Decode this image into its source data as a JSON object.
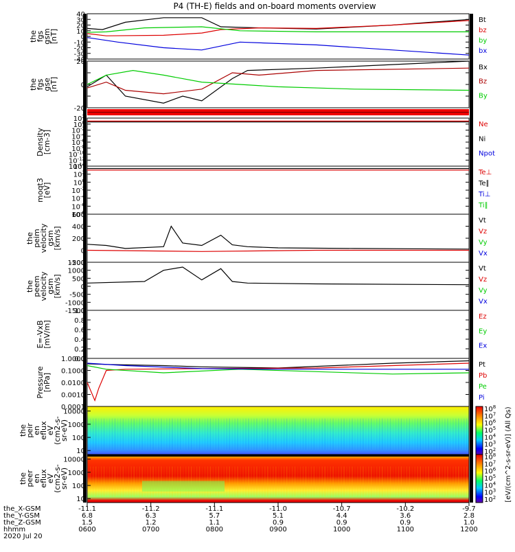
{
  "title": "P4 (TH-E) fields and on-board moments overview",
  "chart_data": [
    {
      "type": "line",
      "ylabel": [
        "the",
        "fgs",
        "gsm",
        "[nT]"
      ],
      "ylim": [
        -40,
        40
      ],
      "yticks": [
        "40",
        "30",
        "20",
        "10",
        "0",
        "-10",
        "-20",
        "-30",
        "-40"
      ],
      "legend": [
        {
          "name": "Bt",
          "color": "#000000"
        },
        {
          "name": "bz",
          "color": "#dd0000"
        },
        {
          "name": "by",
          "color": "#00cc00"
        },
        {
          "name": "bx",
          "color": "#0000dd"
        }
      ],
      "series": [
        {
          "name": "Bt",
          "color": "#000000",
          "x": [
            0,
            0.04,
            0.1,
            0.2,
            0.3,
            0.35,
            0.45,
            0.6,
            0.8,
            1.0
          ],
          "y": [
            14,
            12,
            25,
            33,
            33,
            17,
            15,
            13,
            20,
            30
          ]
        },
        {
          "name": "bz",
          "color": "#dd0000",
          "x": [
            0,
            0.05,
            0.2,
            0.3,
            0.35,
            0.45,
            0.6,
            0.8,
            1.0
          ],
          "y": [
            5,
            1,
            2,
            6,
            12,
            15,
            14,
            20,
            28
          ]
        },
        {
          "name": "by",
          "color": "#00cc00",
          "x": [
            0,
            0.05,
            0.15,
            0.3,
            0.4,
            0.6,
            1.0
          ],
          "y": [
            7,
            8,
            15,
            17,
            10,
            8,
            8
          ]
        },
        {
          "name": "bx",
          "color": "#0000dd",
          "x": [
            0,
            0.08,
            0.2,
            0.3,
            0.4,
            0.6,
            1.0
          ],
          "y": [
            -2,
            -10,
            -20,
            -24,
            -10,
            -15,
            -33
          ]
        }
      ]
    },
    {
      "type": "line",
      "ylabel": [
        "the",
        "fgs",
        "gse",
        "[nT]"
      ],
      "ylim": [
        -20,
        20
      ],
      "yticks": [
        "20",
        "",
        "0",
        "",
        "-20"
      ],
      "legend": [
        {
          "name": "Bx",
          "color": "#000000"
        },
        {
          "name": "Bz",
          "color": "#aa0000"
        },
        {
          "name": "By",
          "color": "#00cc00"
        }
      ],
      "series": [
        {
          "name": "Bx",
          "color": "#000000",
          "x": [
            0,
            0.05,
            0.1,
            0.2,
            0.25,
            0.3,
            0.38,
            0.42,
            0.6,
            1.0
          ],
          "y": [
            -2,
            8,
            -10,
            -16,
            -10,
            -14,
            5,
            12,
            14,
            20
          ]
        },
        {
          "name": "Bz",
          "color": "#aa0000",
          "x": [
            0,
            0.05,
            0.1,
            0.2,
            0.3,
            0.38,
            0.45,
            0.6,
            1.0
          ],
          "y": [
            -3,
            2,
            -5,
            -8,
            -4,
            10,
            8,
            12,
            14
          ]
        },
        {
          "name": "By",
          "color": "#00cc00",
          "x": [
            0,
            0.05,
            0.12,
            0.2,
            0.3,
            0.4,
            0.5,
            0.7,
            1.0
          ],
          "y": [
            0,
            8,
            12,
            8,
            2,
            0,
            -2,
            -4,
            -5
          ]
        }
      ]
    },
    {
      "type": "line",
      "ylabel": [
        "Density",
        "[cm-3]"
      ],
      "ylim": [
        -14,
        2
      ],
      "yscale": "log",
      "yticks": [
        "10^2",
        "10^0",
        "10^-2",
        "10^-4",
        "10^-6",
        "10^-8",
        "10^-10",
        "10^-12",
        "10^-14"
      ],
      "legend": [
        {
          "name": "Ne",
          "color": "#dd0000"
        },
        {
          "name": "Ni",
          "color": "#000000"
        },
        {
          "name": "Npot",
          "color": "#0000dd"
        }
      ],
      "series": [
        {
          "name": "Ne",
          "color": "#dd0000",
          "x": [
            0,
            1
          ],
          "y": [
            1,
            1
          ]
        },
        {
          "name": "Ni",
          "color": "#000000",
          "x": [
            0,
            1
          ],
          "y": [
            0.7,
            0.7
          ]
        }
      ]
    },
    {
      "type": "line",
      "ylabel": [
        "moqt3",
        "[eV]"
      ],
      "ylim": [
        -8,
        4
      ],
      "yscale": "log",
      "yticks": [
        "10^4",
        "10^2",
        "10^0",
        "10^-2",
        "10^-4",
        "10^-6",
        "10^-8"
      ],
      "legend": [
        {
          "name": "Te⊥",
          "color": "#dd0000"
        },
        {
          "name": "Te∥",
          "color": "#000000"
        },
        {
          "name": "Ti⊥",
          "color": "#0000dd"
        },
        {
          "name": "Ti∥",
          "color": "#00cc00"
        }
      ],
      "series": [
        {
          "name": "Te",
          "color": "#dd0000",
          "x": [
            0,
            1
          ],
          "y": [
            3,
            3
          ]
        },
        {
          "name": "Ti",
          "color": "#000000",
          "x": [
            0,
            1
          ],
          "y": [
            3.4,
            3.4
          ]
        }
      ]
    },
    {
      "type": "line",
      "ylabel": [
        "the",
        "peim",
        "velocity",
        "gsm",
        "[km/s]"
      ],
      "ylim": [
        -200,
        600
      ],
      "yticks": [
        "600",
        "400",
        "200",
        "0",
        "-200"
      ],
      "legend": [
        {
          "name": "Vt",
          "color": "#000000"
        },
        {
          "name": "Vz",
          "color": "#dd0000"
        },
        {
          "name": "Vy",
          "color": "#00cc00"
        },
        {
          "name": "Vx",
          "color": "#0000dd"
        }
      ],
      "series": [
        {
          "name": "Vt",
          "color": "#000000",
          "x": [
            0,
            0.05,
            0.1,
            0.2,
            0.22,
            0.25,
            0.3,
            0.35,
            0.38,
            0.42,
            0.5,
            0.7,
            1.0
          ],
          "y": [
            100,
            80,
            30,
            60,
            400,
            120,
            80,
            250,
            90,
            60,
            40,
            30,
            20
          ]
        },
        {
          "name": "Vz",
          "color": "#dd0000",
          "x": [
            0,
            0.3,
            0.6,
            1.0
          ],
          "y": [
            0,
            -20,
            0,
            0
          ]
        }
      ]
    },
    {
      "type": "line",
      "ylabel": [
        "the",
        "peem",
        "velocity",
        "gsm",
        "[km/s]"
      ],
      "ylim": [
        -1500,
        1500
      ],
      "yticks": [
        "1500",
        "1000",
        "500",
        "0",
        "-500",
        "-1000",
        "-1500"
      ],
      "legend": [
        {
          "name": "Vt",
          "color": "#000000"
        },
        {
          "name": "Vz",
          "color": "#dd0000"
        },
        {
          "name": "Vy",
          "color": "#00cc00"
        },
        {
          "name": "Vx",
          "color": "#0000dd"
        }
      ],
      "series": [
        {
          "name": "Vt",
          "color": "#000000",
          "x": [
            0,
            0.15,
            0.2,
            0.25,
            0.3,
            0.35,
            0.38,
            0.42,
            0.6,
            1.0
          ],
          "y": [
            200,
            300,
            1000,
            1200,
            400,
            1100,
            300,
            200,
            150,
            100
          ]
        }
      ]
    },
    {
      "type": "line",
      "ylabel": [
        "E=-VxB",
        "[mV/m]"
      ],
      "ylim": [
        0,
        1
      ],
      "yticks": [
        "1.0",
        "0.8",
        "0.6",
        "0.4",
        "0.2",
        "0.0"
      ],
      "legend": [
        {
          "name": "Ez",
          "color": "#dd0000"
        },
        {
          "name": "Ey",
          "color": "#00cc00"
        },
        {
          "name": "Ex",
          "color": "#0000dd"
        }
      ],
      "series": []
    },
    {
      "type": "line",
      "ylabel": [
        "Pressure",
        "[nPa]"
      ],
      "ylim": [
        -4,
        0
      ],
      "yscale": "log",
      "yticks": [
        "1.0000",
        "0.1000",
        "0.0100",
        "0.0010",
        "0.0001"
      ],
      "legend": [
        {
          "name": "Pt",
          "color": "#000000"
        },
        {
          "name": "Pb",
          "color": "#dd0000"
        },
        {
          "name": "Pe",
          "color": "#00cc00"
        },
        {
          "name": "Pi",
          "color": "#0000dd"
        }
      ],
      "series": [
        {
          "name": "Pt",
          "color": "#000000",
          "x": [
            0,
            0.05,
            0.2,
            0.3,
            0.5,
            0.8,
            1.0
          ],
          "y": [
            -0.45,
            -0.5,
            -0.6,
            -0.7,
            -0.8,
            -0.4,
            -0.2
          ]
        },
        {
          "name": "Pb",
          "color": "#dd0000",
          "x": [
            0,
            0.02,
            0.03,
            0.05,
            0.1,
            0.3,
            0.6,
            1.0
          ],
          "y": [
            -2,
            -3.5,
            -2.5,
            -1,
            -0.9,
            -0.85,
            -0.8,
            -0.4
          ]
        },
        {
          "name": "Pe",
          "color": "#00cc00",
          "x": [
            0,
            0.05,
            0.2,
            0.4,
            0.6,
            0.8,
            1.0
          ],
          "y": [
            -0.6,
            -0.9,
            -1.2,
            -0.9,
            -1.1,
            -1.3,
            -1.2
          ]
        },
        {
          "name": "Pi",
          "color": "#0000dd",
          "x": [
            0,
            0.1,
            0.3,
            0.5,
            1.0
          ],
          "y": [
            -0.4,
            -0.6,
            -0.85,
            -0.9,
            -0.9
          ]
        }
      ]
    },
    {
      "type": "heatmap",
      "ylabel": [
        "the",
        "peir",
        "en",
        "eflux",
        "eV",
        "(cm2-s-",
        "sr-eV)"
      ],
      "yticks": [
        "10000",
        "1000",
        "100",
        "10"
      ],
      "colorbar_ticks": [
        "10^8",
        "10^7",
        "10^6",
        "10^5",
        "10^4",
        "10^3",
        "10^2"
      ]
    },
    {
      "type": "heatmap",
      "ylabel": [
        "the",
        "peer",
        "en",
        "eflux",
        "eV",
        "(cm2-s-",
        "sr-eV)"
      ],
      "yticks": [
        "10000",
        "1000",
        "100",
        "10"
      ],
      "colorbar_ticks": [
        "10^8",
        "10^7",
        "10^6",
        "10^5",
        "10^4",
        "10^3",
        "10^2"
      ]
    }
  ],
  "colorbar_label": "[eV/(cm^2-s-sr-eV)] (All Qs)",
  "xaxis": {
    "row_labels": [
      "the_X-GSM",
      "the_Y-GSM",
      "the_Z-GSM",
      "hhmm",
      "2020 Jul 20"
    ],
    "columns": [
      {
        "xgsm": "-11.1",
        "ygsm": "6.8",
        "zgsm": "1.5",
        "hhmm": "0600"
      },
      {
        "xgsm": "-11.2",
        "ygsm": "6.3",
        "zgsm": "1.2",
        "hhmm": "0700"
      },
      {
        "xgsm": "-11.1",
        "ygsm": "5.7",
        "zgsm": "1.1",
        "hhmm": "0800"
      },
      {
        "xgsm": "-11.0",
        "ygsm": "5.1",
        "zgsm": "0.9",
        "hhmm": "0900"
      },
      {
        "xgsm": "-10.7",
        "ygsm": "4.4",
        "zgsm": "0.9",
        "hhmm": "1000"
      },
      {
        "xgsm": "-10.2",
        "ygsm": "3.6",
        "zgsm": "0.9",
        "hhmm": "1100"
      },
      {
        "xgsm": "-9.7",
        "ygsm": "2.8",
        "zgsm": "1.0",
        "hhmm": "1200"
      }
    ]
  }
}
